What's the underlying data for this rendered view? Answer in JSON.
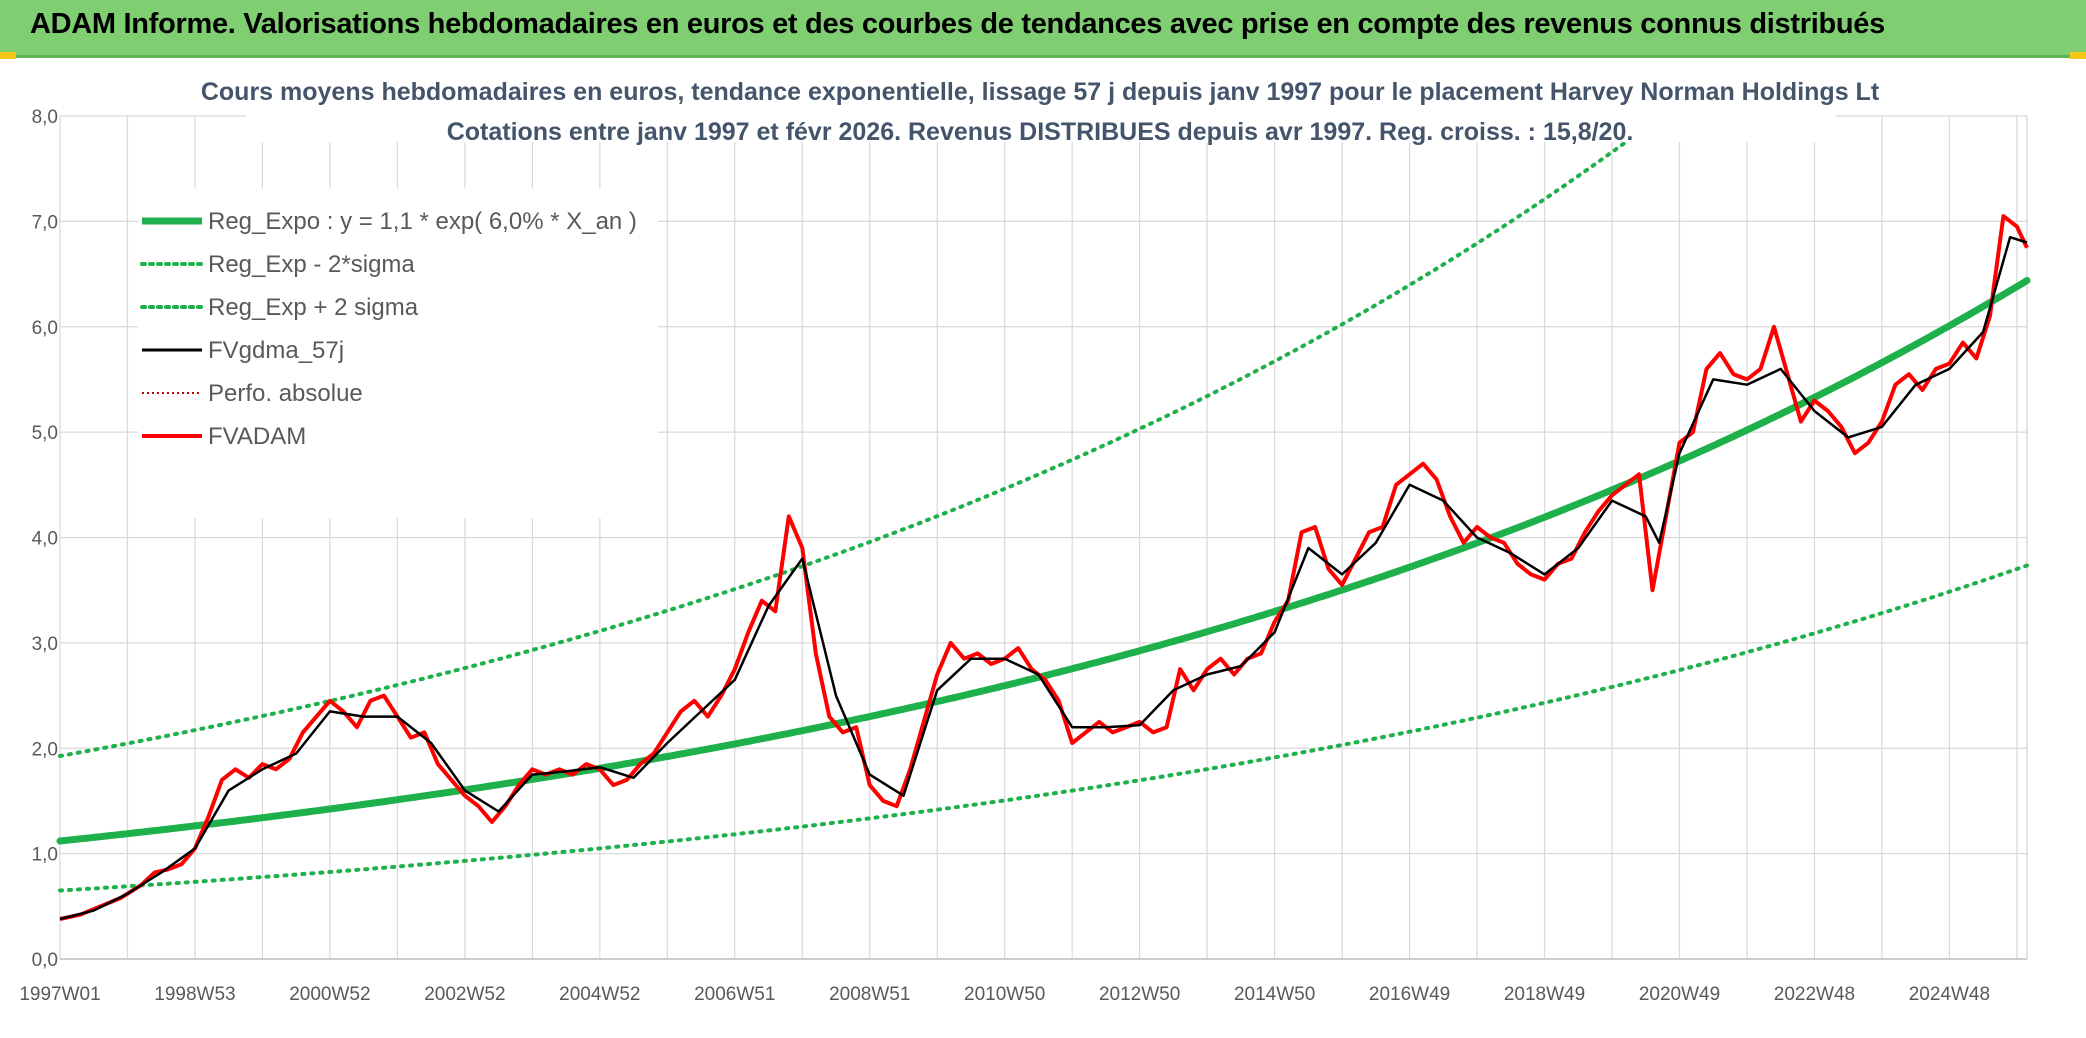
{
  "header": {
    "title": "ADAM Informe. Valorisations hebdomadaires en euros et des courbes de tendances avec prise en compte des revenus connus distribués"
  },
  "colors": {
    "banner": "#7fcf72",
    "reg_expo": "#1db04b",
    "fvadam": "#ff0000",
    "fvgdma": "#000000",
    "perfo": "#c00000",
    "grid": "#d9d9d9"
  },
  "chart_data": {
    "type": "line",
    "title_line1": "Cours moyens hebdomadaires en euros, tendance exponentielle, lissage 57 j depuis janv 1997 pour le placement Harvey Norman Holdings Lt",
    "title_line2": "Cotations entre janv 1997 et févr 2026. Revenus DISTRIBUES depuis avr 1997. Reg. croiss. : 15,8/20.",
    "x_range": [
      1997.0,
      2026.15
    ],
    "ylim": [
      0,
      8
    ],
    "y_ticks": [
      "0,0",
      "1,0",
      "2,0",
      "3,0",
      "4,0",
      "5,0",
      "6,0",
      "7,0",
      "8,0"
    ],
    "x_ticks": [
      {
        "label": "1997W01",
        "t": 1997.0
      },
      {
        "label": "1998W53",
        "t": 1999.0
      },
      {
        "label": "2000W52",
        "t": 2001.0
      },
      {
        "label": "2002W52",
        "t": 2003.0
      },
      {
        "label": "2004W52",
        "t": 2005.0
      },
      {
        "label": "2006W51",
        "t": 2007.0
      },
      {
        "label": "2008W51",
        "t": 2009.0
      },
      {
        "label": "2010W50",
        "t": 2011.0
      },
      {
        "label": "2012W50",
        "t": 2013.0
      },
      {
        "label": "2014W50",
        "t": 2015.0
      },
      {
        "label": "2016W49",
        "t": 2017.0
      },
      {
        "label": "2018W49",
        "t": 2019.0
      },
      {
        "label": "2020W49",
        "t": 2021.0
      },
      {
        "label": "2022W48",
        "t": 2023.0
      },
      {
        "label": "2024W48",
        "t": 2025.0
      }
    ],
    "legend": [
      {
        "label": "Reg_Expo : y = 1,1 * exp( 6,0% *  X_an )",
        "key": "reg_expo",
        "style": "thick-solid"
      },
      {
        "label": "Reg_Exp - 2*sigma",
        "key": "reg_minus",
        "style": "dotted-green"
      },
      {
        "label": "Reg_Exp + 2 sigma",
        "key": "reg_plus",
        "style": "dotted-green"
      },
      {
        "label": "FVgdma_57j",
        "key": "fvgdma",
        "style": "solid-black"
      },
      {
        "label": "Perfo. absolue",
        "key": "perfo",
        "style": "dotted-red"
      },
      {
        "label": "FVADAM",
        "key": "fvadam",
        "style": "solid-red"
      }
    ],
    "regression": {
      "a": 1.12,
      "b": 0.06,
      "sigma_factor_plus": 1.72,
      "sigma_factor_minus": 0.58
    },
    "series": [
      {
        "name": "FVADAM",
        "points": [
          [
            1997.0,
            0.38
          ],
          [
            1997.3,
            0.42
          ],
          [
            1997.6,
            0.5
          ],
          [
            1997.9,
            0.58
          ],
          [
            1998.2,
            0.7
          ],
          [
            1998.4,
            0.82
          ],
          [
            1998.6,
            0.85
          ],
          [
            1998.8,
            0.9
          ],
          [
            1999.0,
            1.05
          ],
          [
            1999.2,
            1.35
          ],
          [
            1999.4,
            1.7
          ],
          [
            1999.6,
            1.8
          ],
          [
            1999.8,
            1.72
          ],
          [
            2000.0,
            1.85
          ],
          [
            2000.2,
            1.8
          ],
          [
            2000.4,
            1.9
          ],
          [
            2000.6,
            2.15
          ],
          [
            2000.8,
            2.3
          ],
          [
            2001.0,
            2.45
          ],
          [
            2001.2,
            2.35
          ],
          [
            2001.4,
            2.2
          ],
          [
            2001.6,
            2.45
          ],
          [
            2001.8,
            2.5
          ],
          [
            2002.0,
            2.3
          ],
          [
            2002.2,
            2.1
          ],
          [
            2002.4,
            2.15
          ],
          [
            2002.6,
            1.85
          ],
          [
            2002.8,
            1.7
          ],
          [
            2003.0,
            1.55
          ],
          [
            2003.2,
            1.45
          ],
          [
            2003.4,
            1.3
          ],
          [
            2003.6,
            1.45
          ],
          [
            2003.8,
            1.65
          ],
          [
            2004.0,
            1.8
          ],
          [
            2004.2,
            1.75
          ],
          [
            2004.4,
            1.8
          ],
          [
            2004.6,
            1.75
          ],
          [
            2004.8,
            1.85
          ],
          [
            2005.0,
            1.8
          ],
          [
            2005.2,
            1.65
          ],
          [
            2005.4,
            1.7
          ],
          [
            2005.6,
            1.85
          ],
          [
            2005.8,
            1.95
          ],
          [
            2006.0,
            2.15
          ],
          [
            2006.2,
            2.35
          ],
          [
            2006.4,
            2.45
          ],
          [
            2006.6,
            2.3
          ],
          [
            2006.8,
            2.5
          ],
          [
            2007.0,
            2.75
          ],
          [
            2007.2,
            3.1
          ],
          [
            2007.4,
            3.4
          ],
          [
            2007.6,
            3.3
          ],
          [
            2007.8,
            4.2
          ],
          [
            2008.0,
            3.9
          ],
          [
            2008.2,
            2.9
          ],
          [
            2008.4,
            2.3
          ],
          [
            2008.6,
            2.15
          ],
          [
            2008.8,
            2.2
          ],
          [
            2009.0,
            1.65
          ],
          [
            2009.2,
            1.5
          ],
          [
            2009.4,
            1.45
          ],
          [
            2009.6,
            1.8
          ],
          [
            2009.8,
            2.25
          ],
          [
            2010.0,
            2.7
          ],
          [
            2010.2,
            3.0
          ],
          [
            2010.4,
            2.85
          ],
          [
            2010.6,
            2.9
          ],
          [
            2010.8,
            2.8
          ],
          [
            2011.0,
            2.85
          ],
          [
            2011.2,
            2.95
          ],
          [
            2011.4,
            2.75
          ],
          [
            2011.6,
            2.65
          ],
          [
            2011.8,
            2.45
          ],
          [
            2012.0,
            2.05
          ],
          [
            2012.2,
            2.15
          ],
          [
            2012.4,
            2.25
          ],
          [
            2012.6,
            2.15
          ],
          [
            2012.8,
            2.2
          ],
          [
            2013.0,
            2.25
          ],
          [
            2013.2,
            2.15
          ],
          [
            2013.4,
            2.2
          ],
          [
            2013.6,
            2.75
          ],
          [
            2013.8,
            2.55
          ],
          [
            2014.0,
            2.75
          ],
          [
            2014.2,
            2.85
          ],
          [
            2014.4,
            2.7
          ],
          [
            2014.6,
            2.85
          ],
          [
            2014.8,
            2.9
          ],
          [
            2015.0,
            3.2
          ],
          [
            2015.2,
            3.4
          ],
          [
            2015.4,
            4.05
          ],
          [
            2015.6,
            4.1
          ],
          [
            2015.8,
            3.7
          ],
          [
            2016.0,
            3.55
          ],
          [
            2016.2,
            3.8
          ],
          [
            2016.4,
            4.05
          ],
          [
            2016.6,
            4.1
          ],
          [
            2016.8,
            4.5
          ],
          [
            2017.0,
            4.6
          ],
          [
            2017.2,
            4.7
          ],
          [
            2017.4,
            4.55
          ],
          [
            2017.6,
            4.2
          ],
          [
            2017.8,
            3.95
          ],
          [
            2018.0,
            4.1
          ],
          [
            2018.2,
            4.0
          ],
          [
            2018.4,
            3.95
          ],
          [
            2018.6,
            3.75
          ],
          [
            2018.8,
            3.65
          ],
          [
            2019.0,
            3.6
          ],
          [
            2019.2,
            3.75
          ],
          [
            2019.4,
            3.8
          ],
          [
            2019.6,
            4.05
          ],
          [
            2019.8,
            4.25
          ],
          [
            2020.0,
            4.4
          ],
          [
            2020.2,
            4.5
          ],
          [
            2020.4,
            4.6
          ],
          [
            2020.6,
            3.5
          ],
          [
            2020.8,
            4.2
          ],
          [
            2021.0,
            4.9
          ],
          [
            2021.2,
            5.0
          ],
          [
            2021.4,
            5.6
          ],
          [
            2021.6,
            5.75
          ],
          [
            2021.8,
            5.55
          ],
          [
            2022.0,
            5.5
          ],
          [
            2022.2,
            5.6
          ],
          [
            2022.4,
            6.0
          ],
          [
            2022.6,
            5.55
          ],
          [
            2022.8,
            5.1
          ],
          [
            2023.0,
            5.3
          ],
          [
            2023.2,
            5.2
          ],
          [
            2023.4,
            5.05
          ],
          [
            2023.6,
            4.8
          ],
          [
            2023.8,
            4.9
          ],
          [
            2024.0,
            5.1
          ],
          [
            2024.2,
            5.45
          ],
          [
            2024.4,
            5.55
          ],
          [
            2024.6,
            5.4
          ],
          [
            2024.8,
            5.6
          ],
          [
            2025.0,
            5.65
          ],
          [
            2025.2,
            5.85
          ],
          [
            2025.4,
            5.7
          ],
          [
            2025.6,
            6.1
          ],
          [
            2025.8,
            7.05
          ],
          [
            2026.0,
            6.95
          ],
          [
            2026.15,
            6.75
          ]
        ]
      },
      {
        "name": "FVgdma_57j",
        "points": [
          [
            1997.0,
            0.38
          ],
          [
            1997.5,
            0.46
          ],
          [
            1998.0,
            0.62
          ],
          [
            1998.5,
            0.82
          ],
          [
            1999.0,
            1.05
          ],
          [
            1999.5,
            1.6
          ],
          [
            2000.0,
            1.8
          ],
          [
            2000.5,
            1.95
          ],
          [
            2001.0,
            2.35
          ],
          [
            2001.5,
            2.3
          ],
          [
            2002.0,
            2.3
          ],
          [
            2002.5,
            2.05
          ],
          [
            2003.0,
            1.6
          ],
          [
            2003.5,
            1.4
          ],
          [
            2004.0,
            1.75
          ],
          [
            2004.5,
            1.78
          ],
          [
            2005.0,
            1.82
          ],
          [
            2005.5,
            1.72
          ],
          [
            2006.0,
            2.05
          ],
          [
            2006.5,
            2.35
          ],
          [
            2007.0,
            2.65
          ],
          [
            2007.5,
            3.35
          ],
          [
            2008.0,
            3.8
          ],
          [
            2008.5,
            2.5
          ],
          [
            2009.0,
            1.75
          ],
          [
            2009.5,
            1.55
          ],
          [
            2010.0,
            2.55
          ],
          [
            2010.5,
            2.85
          ],
          [
            2011.0,
            2.85
          ],
          [
            2011.5,
            2.7
          ],
          [
            2012.0,
            2.2
          ],
          [
            2012.5,
            2.2
          ],
          [
            2013.0,
            2.22
          ],
          [
            2013.5,
            2.55
          ],
          [
            2014.0,
            2.7
          ],
          [
            2014.5,
            2.78
          ],
          [
            2015.0,
            3.1
          ],
          [
            2015.5,
            3.9
          ],
          [
            2016.0,
            3.65
          ],
          [
            2016.5,
            3.95
          ],
          [
            2017.0,
            4.5
          ],
          [
            2017.5,
            4.35
          ],
          [
            2018.0,
            4.0
          ],
          [
            2018.5,
            3.85
          ],
          [
            2019.0,
            3.65
          ],
          [
            2019.5,
            3.9
          ],
          [
            2020.0,
            4.35
          ],
          [
            2020.5,
            4.2
          ],
          [
            2020.7,
            3.95
          ],
          [
            2021.0,
            4.8
          ],
          [
            2021.5,
            5.5
          ],
          [
            2022.0,
            5.45
          ],
          [
            2022.5,
            5.6
          ],
          [
            2023.0,
            5.2
          ],
          [
            2023.5,
            4.95
          ],
          [
            2024.0,
            5.05
          ],
          [
            2024.5,
            5.45
          ],
          [
            2025.0,
            5.6
          ],
          [
            2025.5,
            5.95
          ],
          [
            2025.9,
            6.85
          ],
          [
            2026.15,
            6.8
          ]
        ]
      }
    ]
  }
}
